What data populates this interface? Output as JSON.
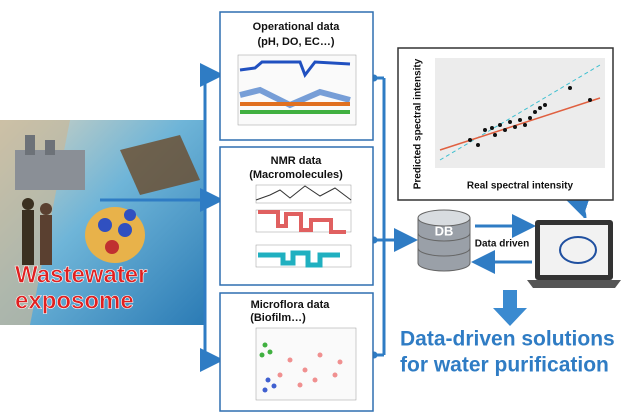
{
  "exposome": {
    "line1": "Wastewater",
    "line2": "exposome"
  },
  "panels": [
    {
      "title": "Operational data",
      "subtitle": "(pH, DO, EC…)"
    },
    {
      "title": "NMR data",
      "subtitle": "(Macromolecules)"
    },
    {
      "title": "Microflora data",
      "subtitle": "(Biofilm…)"
    }
  ],
  "prediction": {
    "y_label": "Predicted spectral intensity",
    "x_label": "Real spectral intensity"
  },
  "db": {
    "label": "DB",
    "arrow_label": "Data driven"
  },
  "solution": {
    "line1": "Data-driven solutions",
    "line2": "for water purification"
  }
}
